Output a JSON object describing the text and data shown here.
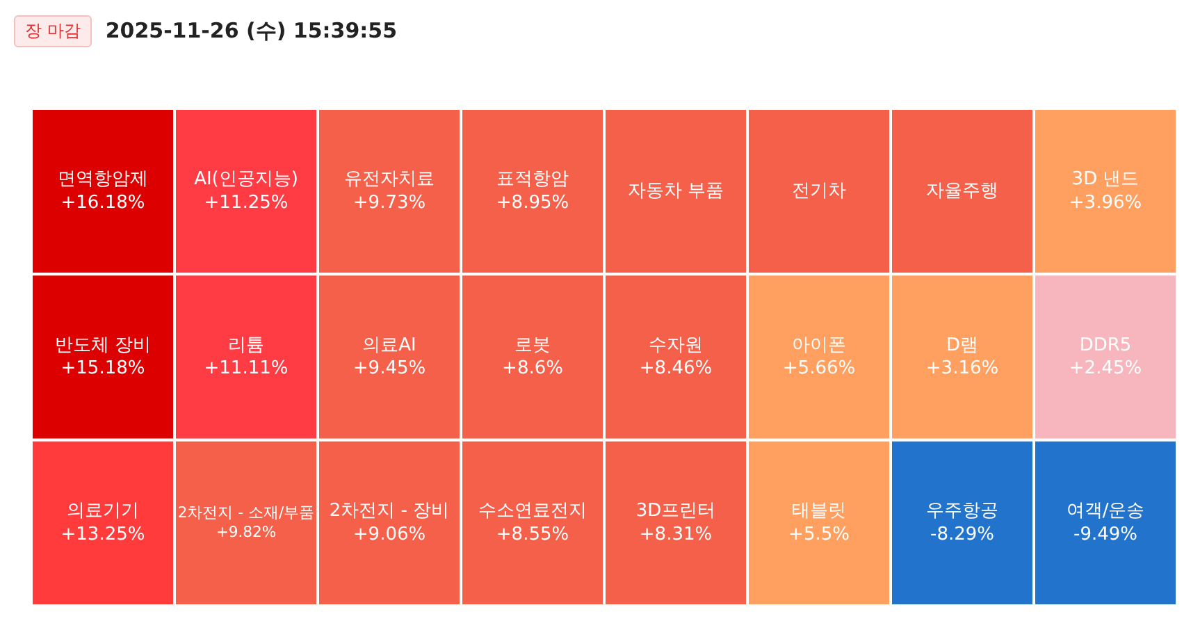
{
  "chart_data": {
    "type": "other",
    "title": "2025-11-26 (수) 15:39:55",
    "annotations": [
      "장 마감"
    ],
    "categories": [
      "면역항암제",
      "반도체 장비",
      "의료기기",
      "AI(인공지능)",
      "리튬",
      "2차전지 - 소재/부품",
      "유전자치료",
      "의료AI",
      "2차전지 - 장비",
      "표적항암",
      "로봇",
      "수소연료전지",
      "자동차 부품",
      "수자원",
      "3D프린터",
      "전기차",
      "자율주행",
      "3D 낸드",
      "아이폰",
      "태블릿",
      "D램",
      "DDR5",
      "우주항공",
      "여객/운송"
    ],
    "values": [
      16.18,
      15.18,
      13.25,
      11.25,
      11.11,
      9.82,
      9.73,
      9.45,
      9.06,
      8.95,
      8.6,
      8.55,
      null,
      8.46,
      8.31,
      null,
      null,
      3.96,
      5.66,
      5.5,
      3.16,
      2.45,
      -8.29,
      -9.49
    ],
    "value_labels": [
      "+16.18%",
      "+15.18%",
      "+13.25%",
      "+11.25%",
      "+11.11%",
      "+9.82%",
      "+9.73%",
      "+9.45%",
      "+9.06%",
      "+8.95%",
      "+8.6%",
      "+8.55%",
      null,
      "+8.46%",
      "+8.31%",
      null,
      null,
      "+3.96%",
      "+5.66%",
      "+5.5%",
      "+3.16%",
      "+2.45%",
      "-8.29%",
      "-9.49%"
    ],
    "colors": [
      "#dd0000",
      "#dd0000",
      "#ff3b3b",
      "#ff3b44",
      "#ff3b44",
      "#f4604a",
      "#f4604a",
      "#f4604a",
      "#f4604a",
      "#f4604a",
      "#f4604a",
      "#f4604a",
      "#f4604a",
      "#f4604a",
      "#f4604a",
      "#f4604a",
      "#f4604a",
      "#ffa060",
      "#ffa060",
      "#ffa060",
      "#ffa060",
      "#f7b6bd",
      "#2273cc",
      "#2273cc"
    ]
  }
}
